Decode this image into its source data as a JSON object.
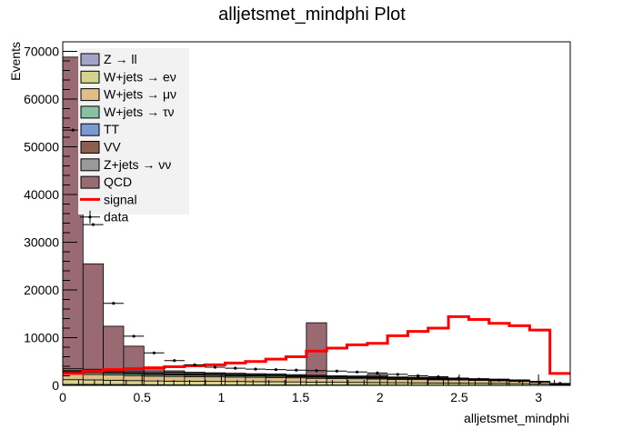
{
  "chart_data": {
    "type": "bar",
    "title": "alljetsmet_mindphi Plot",
    "xlabel": "alljetsmet_mindphi",
    "ylabel": "Events",
    "xlim": [
      0,
      3.2
    ],
    "ylim": [
      0,
      72000
    ],
    "x_ticks": [
      "0",
      "0.5",
      "1",
      "1.5",
      "2",
      "2.5",
      "3"
    ],
    "y_ticks": [
      "0",
      "10000",
      "20000",
      "30000",
      "40000",
      "50000",
      "60000",
      "70000"
    ],
    "bin_edges": [
      0,
      0.128,
      0.256,
      0.384,
      0.512,
      0.64,
      0.768,
      0.896,
      1.024,
      1.152,
      1.28,
      1.408,
      1.536,
      1.664,
      1.792,
      1.92,
      2.048,
      2.176,
      2.304,
      2.432,
      2.56,
      2.688,
      2.816,
      2.944,
      3.072,
      3.2
    ],
    "stacked": true,
    "series": [
      {
        "name": "Z → ll",
        "color": "#a4a4c8",
        "values": [
          200,
          200,
          180,
          150,
          130,
          110,
          100,
          100,
          100,
          90,
          90,
          80,
          80,
          70,
          70,
          60,
          60,
          50,
          50,
          50,
          40,
          40,
          30,
          20,
          10
        ]
      },
      {
        "name": "W+jets → eν",
        "color": "#d6d38c",
        "values": [
          1000,
          950,
          900,
          850,
          800,
          780,
          760,
          740,
          720,
          700,
          680,
          650,
          600,
          580,
          560,
          540,
          500,
          480,
          460,
          440,
          400,
          380,
          340,
          250,
          80
        ]
      },
      {
        "name": "W+jets → μν",
        "color": "#dfbe88",
        "values": [
          1200,
          1150,
          1100,
          1050,
          1000,
          980,
          960,
          940,
          920,
          900,
          880,
          850,
          800,
          780,
          760,
          740,
          700,
          680,
          660,
          640,
          600,
          560,
          500,
          380,
          120
        ]
      },
      {
        "name": "W+jets → τν",
        "color": "#86c1a4",
        "values": [
          400,
          380,
          360,
          340,
          320,
          310,
          300,
          290,
          280,
          270,
          260,
          250,
          240,
          230,
          220,
          210,
          200,
          190,
          180,
          170,
          160,
          150,
          130,
          100,
          30
        ]
      },
      {
        "name": "TT",
        "color": "#7b99d3",
        "values": [
          100,
          100,
          90,
          90,
          80,
          80,
          70,
          70,
          70,
          60,
          60,
          60,
          50,
          50,
          50,
          40,
          40,
          40,
          30,
          30,
          30,
          20,
          20,
          10,
          5
        ]
      },
      {
        "name": "VV",
        "color": "#8c5e4d",
        "values": [
          300,
          300,
          280,
          260,
          240,
          230,
          220,
          210,
          200,
          190,
          180,
          170,
          160,
          150,
          140,
          130,
          120,
          110,
          100,
          90,
          80,
          70,
          60,
          40,
          15
        ]
      },
      {
        "name": "Z+jets → νν",
        "color": "#9a9a9a",
        "values": [
          300,
          300,
          290,
          280,
          270,
          260,
          250,
          240,
          230,
          220,
          210,
          200,
          190,
          180,
          170,
          160,
          150,
          140,
          130,
          120,
          110,
          100,
          80,
          60,
          20
        ]
      },
      {
        "name": "QCD",
        "color": "#9a6a72",
        "values": [
          65300,
          22100,
          9200,
          5200,
          800,
          300,
          100,
          50,
          20,
          10,
          10,
          0,
          11000,
          0,
          0,
          400,
          0,
          0,
          0,
          0,
          0,
          0,
          0,
          0,
          0
        ]
      }
    ],
    "signal": {
      "name": "signal",
      "color": "#ff0000",
      "values": [
        2500,
        3000,
        3300,
        3500,
        3700,
        3900,
        4100,
        4300,
        4700,
        5000,
        5500,
        6000,
        7200,
        7800,
        8500,
        8800,
        10400,
        11300,
        12000,
        14400,
        13800,
        13000,
        12500,
        11600,
        2500
      ]
    },
    "data": {
      "name": "data",
      "x": [
        0.064,
        0.192,
        0.32,
        0.448,
        0.576,
        0.704,
        0.832,
        0.96,
        1.088,
        1.216,
        1.344,
        1.472,
        1.6,
        1.728,
        1.856,
        1.984,
        2.112,
        2.24,
        2.368,
        2.496,
        2.624,
        2.752,
        2.88,
        3.008,
        3.136
      ],
      "y": [
        53500,
        33700,
        17200,
        10300,
        6800,
        5200,
        4300,
        3800,
        3600,
        3400,
        3300,
        3200,
        3100,
        3000,
        2800,
        2600,
        2300,
        2000,
        1800,
        1500,
        1300,
        1100,
        900,
        700,
        400
      ]
    },
    "legend_placement": "top-left",
    "grid": false
  }
}
